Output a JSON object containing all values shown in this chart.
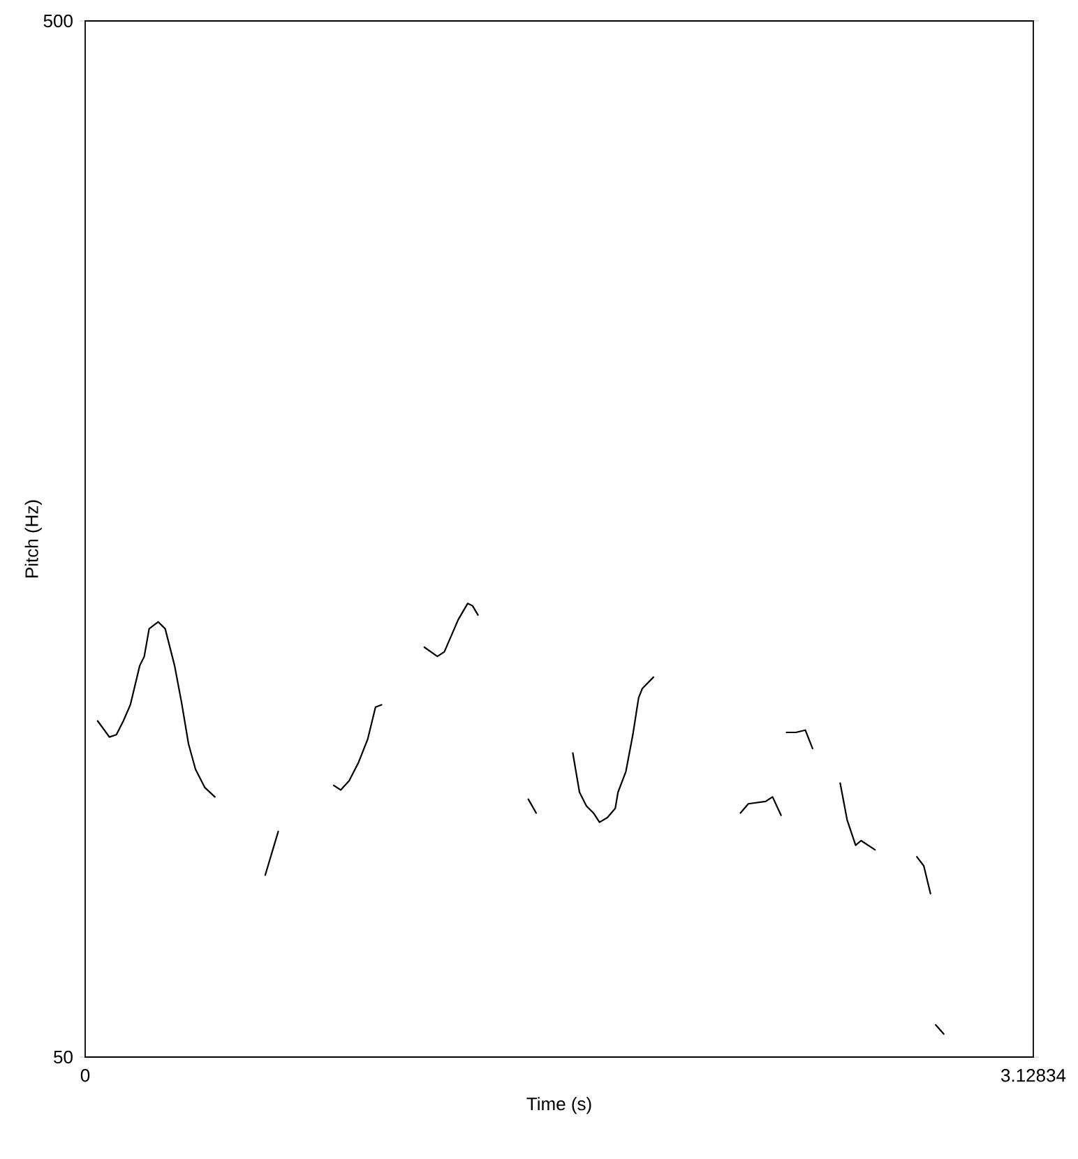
{
  "chart_data": {
    "type": "line",
    "xlabel": "Time (s)",
    "ylabel": "Pitch (Hz)",
    "xlim": [
      0,
      3.12834
    ],
    "ylim": [
      50,
      500
    ],
    "xticks": [
      0,
      3.12834
    ],
    "yticks": [
      50,
      500
    ],
    "marker": "none",
    "line_style": "solid",
    "series": [
      {
        "color": "#000000",
        "x": [
          0.041,
          0.08,
          0.103,
          0.126,
          0.149,
          0.18,
          0.195,
          0.211,
          0.241,
          0.264,
          0.295,
          0.318,
          0.341,
          0.364,
          0.395,
          0.428
        ],
        "values": [
          196,
          189,
          190,
          196,
          203,
          220,
          224,
          236,
          239,
          236,
          220,
          204,
          186,
          175,
          167,
          163
        ]
      },
      {
        "color": "#000000",
        "x": [
          0.594,
          0.637
        ],
        "values": [
          129,
          148
        ]
      },
      {
        "color": "#000000",
        "x": [
          0.82,
          0.843,
          0.871,
          0.902,
          0.932,
          0.958,
          0.978
        ],
        "values": [
          168,
          166,
          170,
          178,
          188,
          202,
          203
        ]
      },
      {
        "color": "#000000",
        "x": [
          1.119,
          1.162,
          1.185,
          1.231,
          1.262,
          1.278,
          1.296
        ],
        "values": [
          228,
          224,
          226,
          240,
          247,
          246,
          242
        ]
      },
      {
        "color": "#000000",
        "x": [
          1.462,
          1.488
        ],
        "values": [
          162,
          156
        ]
      },
      {
        "color": "#000000",
        "x": [
          1.609,
          1.631,
          1.654,
          1.677,
          1.697,
          1.723,
          1.749,
          1.758,
          1.784,
          1.807,
          1.826,
          1.838,
          1.875
        ],
        "values": [
          182,
          165,
          159,
          156,
          152,
          154,
          158,
          165,
          174,
          190,
          206,
          210,
          215
        ]
      },
      {
        "color": "#000000",
        "x": [
          2.162,
          2.188,
          2.245,
          2.268,
          2.296
        ],
        "values": [
          156,
          160,
          161,
          163,
          155
        ]
      },
      {
        "color": "#000000",
        "x": [
          2.314,
          2.345,
          2.376,
          2.4
        ],
        "values": [
          191,
          191,
          192,
          184
        ]
      },
      {
        "color": "#000000",
        "x": [
          2.491,
          2.514,
          2.542,
          2.56,
          2.606
        ],
        "values": [
          169,
          153,
          142,
          144,
          140
        ]
      },
      {
        "color": "#000000",
        "x": [
          2.744,
          2.767,
          2.789
        ],
        "values": [
          137,
          133,
          121
        ]
      },
      {
        "color": "#000000",
        "x": [
          2.806,
          2.833
        ],
        "values": [
          64,
          60
        ]
      }
    ]
  }
}
